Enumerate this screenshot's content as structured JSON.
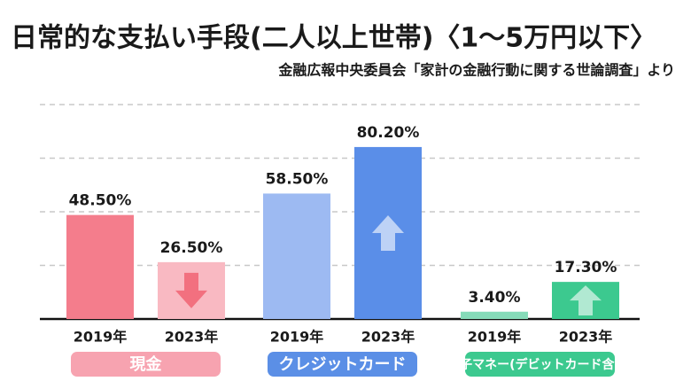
{
  "chart_data": {
    "type": "bar",
    "title": "日常的な支払い手段(二人以上世帯)〈1～5万円以下〉",
    "subtitle": "金融広報中央委員会「家計の金融行動に関する世論調査」より",
    "ylim": [
      0,
      100
    ],
    "yticks": [
      25,
      50,
      75,
      100
    ],
    "grid": true,
    "groups": [
      {
        "name": "現金",
        "color": "#f7a3b0",
        "categories": [
          "2019年",
          "2023年"
        ],
        "values": [
          48.5,
          26.5
        ],
        "value_labels": [
          "48.50%",
          "26.50%"
        ],
        "colors": [
          "#f47d8c",
          "#f9b9c2"
        ]
      },
      {
        "name": "クレジットカード",
        "color": "#5b8fe6",
        "categories": [
          "2019年",
          "2023年"
        ],
        "values": [
          58.5,
          80.2
        ],
        "value_labels": [
          "58.50%",
          "80.20%"
        ],
        "colors": [
          "#9dbaf2",
          "#5a8ee8"
        ]
      },
      {
        "name": "電子マネー(デビットカード含む)",
        "color": "#3cc98f",
        "categories": [
          "2019年",
          "2023年"
        ],
        "values": [
          3.4,
          17.3
        ],
        "value_labels": [
          "3.40%",
          "17.30%"
        ],
        "colors": [
          "#86dbb9",
          "#3cc98f"
        ]
      }
    ]
  }
}
